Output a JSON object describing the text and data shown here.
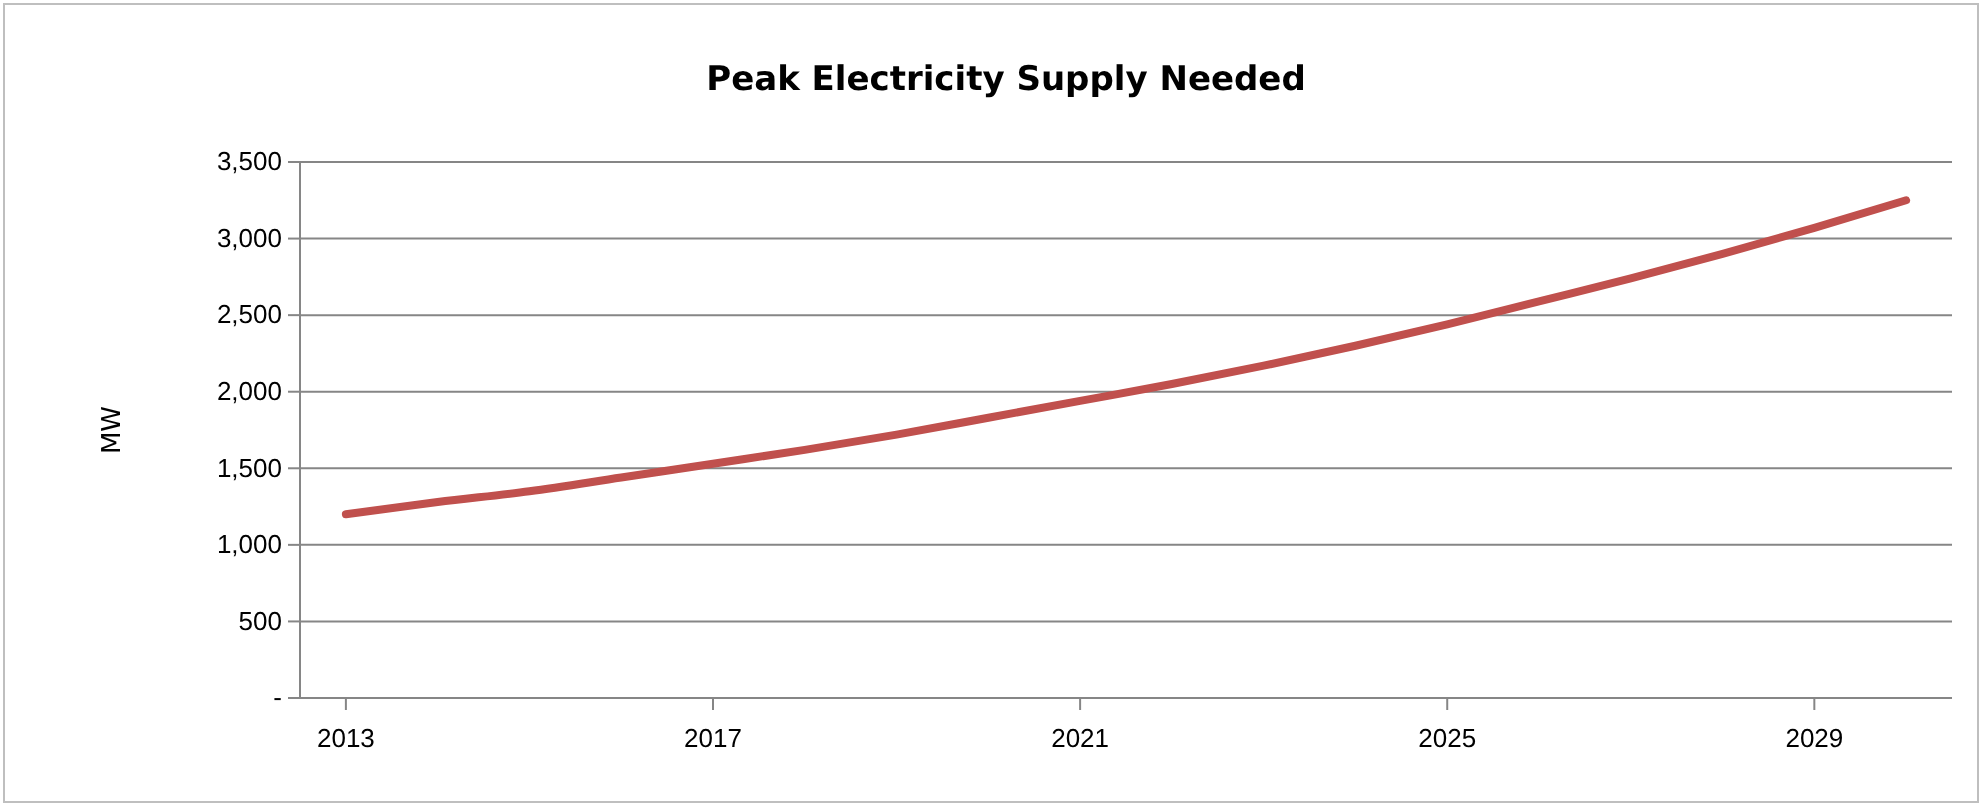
{
  "chart_data": {
    "type": "line",
    "title": "Peak Electricity Supply Needed",
    "ylabel": "MW",
    "x": [
      2013,
      2014,
      2015,
      2016,
      2017,
      2018,
      2019,
      2020,
      2021,
      2022,
      2023,
      2024,
      2025,
      2026,
      2027,
      2028,
      2029,
      2030
    ],
    "series": [
      {
        "color": "#c0504d",
        "values": [
          1200,
          1280,
          1350,
          1440,
          1530,
          1620,
          1720,
          1830,
          1940,
          2050,
          2170,
          2300,
          2440,
          2590,
          2740,
          2900,
          3070,
          3250
        ]
      }
    ],
    "xlim": [
      2012.5,
      2030.5
    ],
    "xticks": [
      2013,
      2017,
      2021,
      2025,
      2029
    ],
    "ylim": [
      0,
      3500
    ],
    "yticks": [
      {
        "value": 0,
        "label": "-"
      },
      {
        "value": 500,
        "label": "500"
      },
      {
        "value": 1000,
        "label": "1,000"
      },
      {
        "value": 1500,
        "label": "1,500"
      },
      {
        "value": 2000,
        "label": "2,000"
      },
      {
        "value": 2500,
        "label": "2,500"
      },
      {
        "value": 3000,
        "label": "3,000"
      },
      {
        "value": 3500,
        "label": "3,500"
      }
    ],
    "grid": "y",
    "line_style": "solid"
  }
}
